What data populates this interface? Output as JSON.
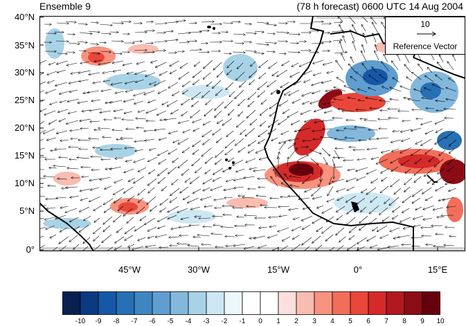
{
  "title_left": "Ensemble 9",
  "title_right": "(78 h forecast) 0600 UTC 14 Aug 2004",
  "lat_labels": [
    "40°N",
    "35°N",
    "30°N",
    "25°N",
    "20°N",
    "15°N",
    "10°N",
    "5°N",
    "0°"
  ],
  "lon_labels": [
    "45°W",
    "30°W",
    "15°W",
    "0°",
    "15°E"
  ],
  "reference_vector": {
    "value": "10",
    "label": "Reference Vector"
  },
  "colorbar": {
    "labels": [
      "-10",
      "-9",
      "-8",
      "-7",
      "-6",
      "-5",
      "-4",
      "-3",
      "-2",
      "-1",
      "0",
      "1",
      "2",
      "3",
      "4",
      "5",
      "6",
      "7",
      "8",
      "9",
      "10"
    ],
    "colors": [
      "#08204f",
      "#0a3a80",
      "#1658a8",
      "#2770b4",
      "#3f86c0",
      "#5f9ecf",
      "#83b8dc",
      "#a8d3e6",
      "#cde8f3",
      "#ecf6fb",
      "#ffffff",
      "#ffffff",
      "#fde0dd",
      "#f9bcb0",
      "#f7937f",
      "#f26e5b",
      "#e8473a",
      "#d42a2a",
      "#b31820",
      "#8c0c15",
      "#67000d"
    ]
  }
}
